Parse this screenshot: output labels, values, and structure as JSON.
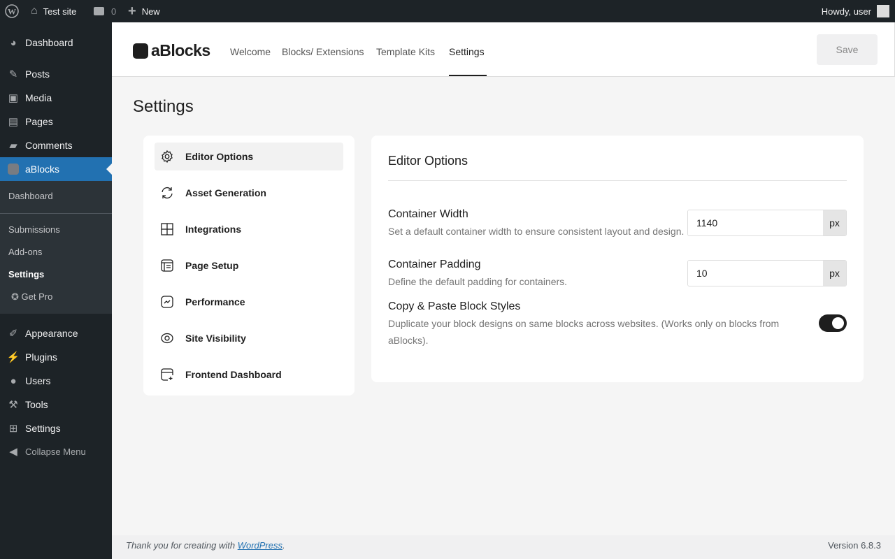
{
  "adminbar": {
    "site": "Test site",
    "comments": "0",
    "new": "New",
    "howdy": "Howdy, user"
  },
  "sidebar": {
    "items": [
      {
        "label": "Dashboard",
        "icon": "dashboard-icon"
      },
      {
        "label": "Posts",
        "icon": "pin-icon"
      },
      {
        "label": "Media",
        "icon": "media-icon"
      },
      {
        "label": "Pages",
        "icon": "pages-icon"
      },
      {
        "label": "Comments",
        "icon": "comment-icon"
      },
      {
        "label": "aBlocks",
        "icon": "ablocks-icon"
      },
      {
        "label": "Appearance",
        "icon": "brush-icon"
      },
      {
        "label": "Plugins",
        "icon": "plugin-icon"
      },
      {
        "label": "Users",
        "icon": "user-icon"
      },
      {
        "label": "Tools",
        "icon": "wrench-icon"
      },
      {
        "label": "Settings",
        "icon": "settings-icon"
      },
      {
        "label": "Collapse Menu",
        "icon": "collapse-icon"
      }
    ],
    "submenu": [
      "Dashboard",
      "Submissions",
      "Add-ons",
      "Settings",
      "Get Pro"
    ]
  },
  "header": {
    "logo": "aBlocks",
    "tabs": [
      "Welcome",
      "Blocks/ Extensions",
      "Template Kits",
      "Settings"
    ],
    "active_tab": "Settings",
    "save": "Save"
  },
  "page": {
    "title": "Settings"
  },
  "menu": [
    "Editor Options",
    "Asset Generation",
    "Integrations",
    "Page Setup",
    "Performance",
    "Site Visibility",
    "Frontend Dashboard"
  ],
  "panel": {
    "title": "Editor Options",
    "width": {
      "label": "Container Width",
      "desc": "Set a default container width to ensure consistent layout and design.",
      "value": "1140",
      "unit": "px"
    },
    "padding": {
      "label": "Container Padding",
      "desc": "Define the default padding for containers.",
      "value": "10",
      "unit": "px"
    },
    "copy": {
      "label": "Copy & Paste Block Styles",
      "desc": "Duplicate your block designs on same blocks across websites. (Works only on blocks from aBlocks).",
      "enabled": true
    }
  },
  "footer": {
    "thanks": "Thank you for creating with ",
    "link": "WordPress",
    "version": "Version 6.8.3"
  },
  "colors": {
    "accent": "#2271b1",
    "dark": "#1d2327"
  }
}
